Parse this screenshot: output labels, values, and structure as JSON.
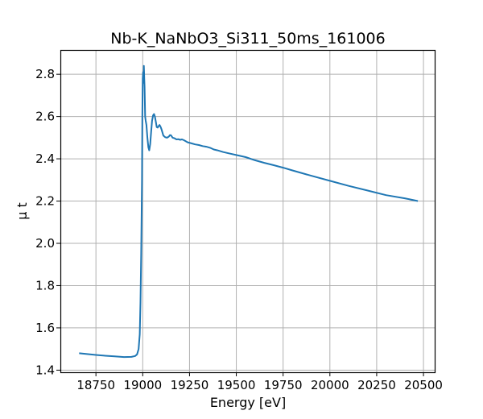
{
  "chart_data": {
    "type": "line",
    "title": "Nb-K_NaNbO3_Si311_50ms_161006",
    "xlabel": "Energy [eV]",
    "ylabel": "μ t",
    "xlim": [
      18560,
      20560
    ],
    "ylim": [
      1.39,
      2.915
    ],
    "grid": true,
    "xticks": [
      18750,
      19000,
      19250,
      19500,
      19750,
      20000,
      20250,
      20500
    ],
    "yticks": [
      1.4,
      1.6,
      1.8,
      2.0,
      2.2,
      2.4,
      2.6,
      2.8
    ],
    "xtick_labels": [
      "18750",
      "19000",
      "19250",
      "19500",
      "19750",
      "20000",
      "20250",
      "20500"
    ],
    "ytick_labels": [
      "1.4",
      "1.6",
      "1.8",
      "2.0",
      "2.2",
      "2.4",
      "2.6",
      "2.8"
    ],
    "series": [
      {
        "color": "#1f77b4",
        "points": [
          [
            18660,
            1.48
          ],
          [
            18750,
            1.472
          ],
          [
            18800,
            1.468
          ],
          [
            18850,
            1.465
          ],
          [
            18900,
            1.462
          ],
          [
            18940,
            1.463
          ],
          [
            18960,
            1.467
          ],
          [
            18970,
            1.475
          ],
          [
            18978,
            1.5
          ],
          [
            18984,
            1.57
          ],
          [
            18988,
            1.72
          ],
          [
            18992,
            1.95
          ],
          [
            18996,
            2.3
          ],
          [
            18998,
            2.6
          ],
          [
            19000,
            2.78
          ],
          [
            19002,
            2.81
          ],
          [
            19004,
            2.76
          ],
          [
            19006,
            2.84
          ],
          [
            19008,
            2.78
          ],
          [
            19010,
            2.74
          ],
          [
            19013,
            2.6
          ],
          [
            19016,
            2.58
          ],
          [
            19020,
            2.56
          ],
          [
            19025,
            2.5
          ],
          [
            19030,
            2.455
          ],
          [
            19035,
            2.44
          ],
          [
            19040,
            2.47
          ],
          [
            19045,
            2.53
          ],
          [
            19050,
            2.58
          ],
          [
            19055,
            2.605
          ],
          [
            19060,
            2.612
          ],
          [
            19065,
            2.6
          ],
          [
            19070,
            2.575
          ],
          [
            19075,
            2.55
          ],
          [
            19080,
            2.548
          ],
          [
            19085,
            2.555
          ],
          [
            19090,
            2.56
          ],
          [
            19095,
            2.552
          ],
          [
            19100,
            2.54
          ],
          [
            19110,
            2.51
          ],
          [
            19120,
            2.502
          ],
          [
            19130,
            2.5
          ],
          [
            19140,
            2.505
          ],
          [
            19145,
            2.512
          ],
          [
            19150,
            2.512
          ],
          [
            19160,
            2.5
          ],
          [
            19170,
            2.497
          ],
          [
            19180,
            2.492
          ],
          [
            19190,
            2.493
          ],
          [
            19200,
            2.49
          ],
          [
            19210,
            2.492
          ],
          [
            19220,
            2.488
          ],
          [
            19240,
            2.478
          ],
          [
            19260,
            2.473
          ],
          [
            19280,
            2.468
          ],
          [
            19300,
            2.465
          ],
          [
            19320,
            2.46
          ],
          [
            19340,
            2.457
          ],
          [
            19360,
            2.452
          ],
          [
            19380,
            2.444
          ],
          [
            19400,
            2.44
          ],
          [
            19430,
            2.432
          ],
          [
            19460,
            2.426
          ],
          [
            19500,
            2.418
          ],
          [
            19550,
            2.408
          ],
          [
            19600,
            2.393
          ],
          [
            19650,
            2.381
          ],
          [
            19700,
            2.37
          ],
          [
            19750,
            2.358
          ],
          [
            19800,
            2.345
          ],
          [
            19900,
            2.32
          ],
          [
            20000,
            2.296
          ],
          [
            20100,
            2.272
          ],
          [
            20200,
            2.25
          ],
          [
            20300,
            2.228
          ],
          [
            20400,
            2.213
          ],
          [
            20470,
            2.2
          ]
        ]
      }
    ]
  }
}
